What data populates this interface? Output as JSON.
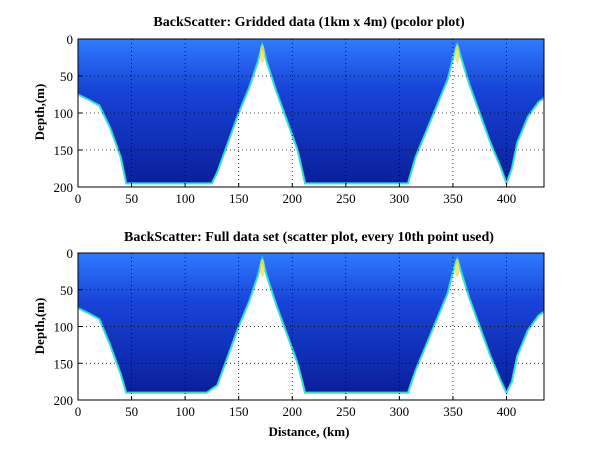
{
  "figure": {
    "background": "#ffffff",
    "colors": {
      "fill_dark": "#0a1f9c",
      "fill_mid": "#1744d8",
      "fill_light": "#2f7bff",
      "edge_cyan": "#19d3f0",
      "edge_green": "#5ef07a",
      "hotspot": "#e8e04a"
    }
  },
  "chart_data": [
    {
      "type": "heatmap",
      "title": "BackScatter: Gridded data (1km x 4m) (pcolor plot)",
      "xlabel": "",
      "ylabel": "Depth,(m)",
      "xlim": [
        0,
        435
      ],
      "ylim": [
        200,
        0
      ],
      "y_reversed": true,
      "xticks": [
        0,
        50,
        100,
        150,
        200,
        250,
        300,
        350,
        400
      ],
      "yticks": [
        0,
        50,
        100,
        150,
        200
      ],
      "grid": true,
      "bottom_profile": [
        [
          0,
          75
        ],
        [
          10,
          82
        ],
        [
          20,
          90
        ],
        [
          30,
          120
        ],
        [
          40,
          160
        ],
        [
          45,
          195
        ],
        [
          55,
          195
        ],
        [
          60,
          195
        ],
        [
          90,
          195
        ],
        [
          100,
          195
        ],
        [
          125,
          195
        ],
        [
          130,
          180
        ],
        [
          140,
          140
        ],
        [
          150,
          100
        ],
        [
          160,
          65
        ],
        [
          168,
          30
        ],
        [
          172,
          8
        ],
        [
          176,
          30
        ],
        [
          185,
          70
        ],
        [
          195,
          110
        ],
        [
          205,
          150
        ],
        [
          212,
          195
        ],
        [
          230,
          195
        ],
        [
          260,
          195
        ],
        [
          300,
          195
        ],
        [
          308,
          195
        ],
        [
          315,
          160
        ],
        [
          325,
          125
        ],
        [
          335,
          90
        ],
        [
          345,
          55
        ],
        [
          351,
          20
        ],
        [
          354,
          8
        ],
        [
          357,
          22
        ],
        [
          365,
          60
        ],
        [
          375,
          100
        ],
        [
          385,
          140
        ],
        [
          395,
          175
        ],
        [
          400,
          195
        ],
        [
          405,
          175
        ],
        [
          410,
          140
        ],
        [
          420,
          105
        ],
        [
          430,
          85
        ],
        [
          435,
          80
        ]
      ]
    },
    {
      "type": "scatter",
      "title": "BackScatter: Full data set (scatter plot, every 10th point used)",
      "xlabel": "Distance, (km)",
      "ylabel": "Depth,(m)",
      "xlim": [
        0,
        435
      ],
      "ylim": [
        200,
        0
      ],
      "y_reversed": true,
      "xticks": [
        0,
        50,
        100,
        150,
        200,
        250,
        300,
        350,
        400
      ],
      "yticks": [
        0,
        50,
        100,
        150,
        200
      ],
      "grid": true,
      "bottom_profile": [
        [
          0,
          75
        ],
        [
          10,
          82
        ],
        [
          20,
          90
        ],
        [
          30,
          125
        ],
        [
          40,
          165
        ],
        [
          45,
          190
        ],
        [
          55,
          190
        ],
        [
          70,
          190
        ],
        [
          100,
          190
        ],
        [
          120,
          190
        ],
        [
          130,
          180
        ],
        [
          140,
          140
        ],
        [
          150,
          100
        ],
        [
          160,
          65
        ],
        [
          168,
          30
        ],
        [
          172,
          8
        ],
        [
          176,
          30
        ],
        [
          185,
          70
        ],
        [
          195,
          110
        ],
        [
          205,
          150
        ],
        [
          212,
          190
        ],
        [
          230,
          190
        ],
        [
          260,
          190
        ],
        [
          300,
          190
        ],
        [
          308,
          190
        ],
        [
          315,
          160
        ],
        [
          325,
          125
        ],
        [
          335,
          90
        ],
        [
          345,
          55
        ],
        [
          351,
          20
        ],
        [
          354,
          8
        ],
        [
          357,
          22
        ],
        [
          365,
          60
        ],
        [
          375,
          100
        ],
        [
          385,
          140
        ],
        [
          395,
          175
        ],
        [
          400,
          190
        ],
        [
          405,
          175
        ],
        [
          410,
          140
        ],
        [
          420,
          105
        ],
        [
          430,
          85
        ],
        [
          435,
          80
        ]
      ]
    }
  ]
}
